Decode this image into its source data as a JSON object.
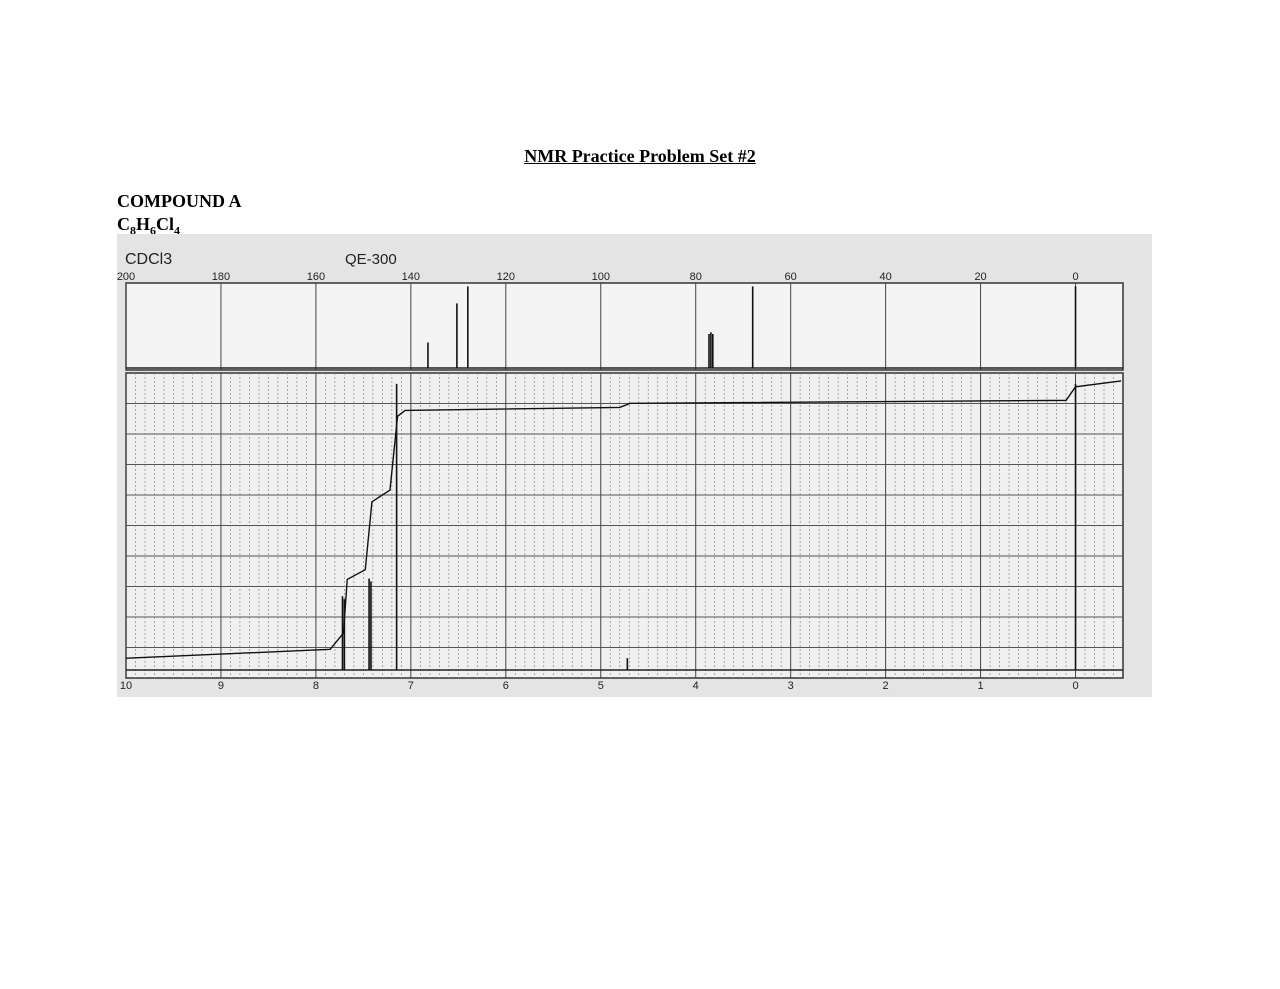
{
  "header": {
    "title": "NMR Practice Problem Set #2"
  },
  "compound": {
    "name": "COMPOUND A",
    "formula": [
      "C",
      "8",
      "H",
      "6",
      "Cl",
      "4"
    ]
  },
  "spectrum": {
    "solvent": "CDCl3",
    "instrument": "QE-300",
    "carbon": {
      "type": "stick",
      "xlim": [
        200,
        -10
      ],
      "ylim": [
        0,
        100
      ],
      "xticks": [
        200,
        180,
        160,
        140,
        120,
        100,
        80,
        60,
        40,
        20,
        0
      ],
      "x": [
        136.4,
        130.3,
        128.0,
        77.2,
        76.8,
        76.4,
        68.0,
        0
      ],
      "values": [
        30,
        76,
        96,
        40,
        42,
        40,
        96,
        96
      ]
    },
    "proton": {
      "type": "stick",
      "xlim": [
        10,
        -0.5
      ],
      "ylim": [
        0,
        100
      ],
      "xticks": [
        10,
        9,
        8,
        7,
        6,
        5,
        4,
        3,
        2,
        1,
        0
      ],
      "x": [
        7.72,
        7.7,
        7.44,
        7.42,
        7.15,
        4.72,
        0
      ],
      "values": [
        25,
        24,
        31,
        30,
        97,
        4,
        97
      ],
      "integral": {
        "x": [
          10,
          7.85,
          7.71,
          7.67,
          7.48,
          7.41,
          7.22,
          7.14,
          7.06,
          4.8,
          4.69,
          0.1,
          0,
          -0.48
        ],
        "values": [
          4,
          7,
          12.5,
          30.7,
          34,
          57,
          61,
          86,
          88,
          89,
          90.4,
          91.4,
          96,
          98
        ]
      }
    }
  }
}
